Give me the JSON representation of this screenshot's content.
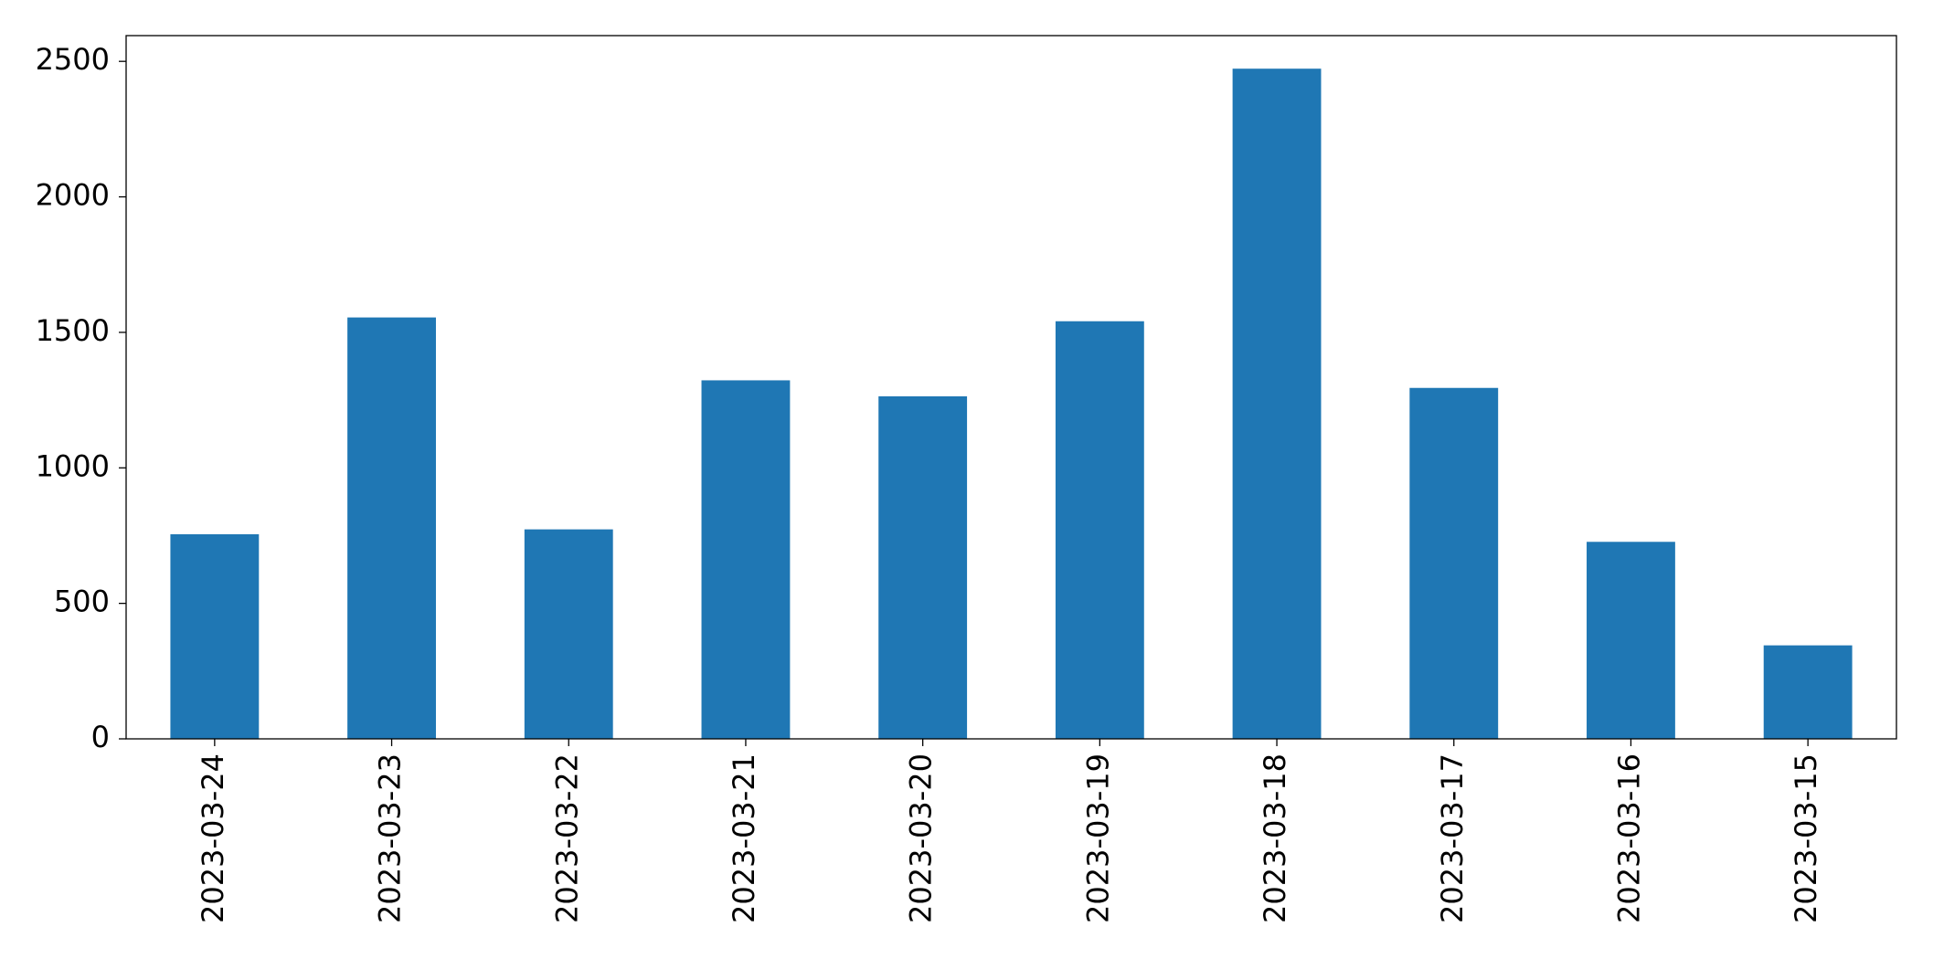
{
  "chart_data": {
    "type": "bar",
    "categories": [
      "2023-03-24",
      "2023-03-23",
      "2023-03-22",
      "2023-03-21",
      "2023-03-20",
      "2023-03-19",
      "2023-03-18",
      "2023-03-17",
      "2023-03-16",
      "2023-03-15"
    ],
    "values": [
      755,
      1555,
      773,
      1323,
      1264,
      1541,
      2473,
      1295,
      727,
      345
    ],
    "color": "#1f77b4",
    "ylim": [
      0,
      2595
    ],
    "yticks": [
      0,
      500,
      1000,
      1500,
      2000,
      2500
    ],
    "grid": false
  }
}
